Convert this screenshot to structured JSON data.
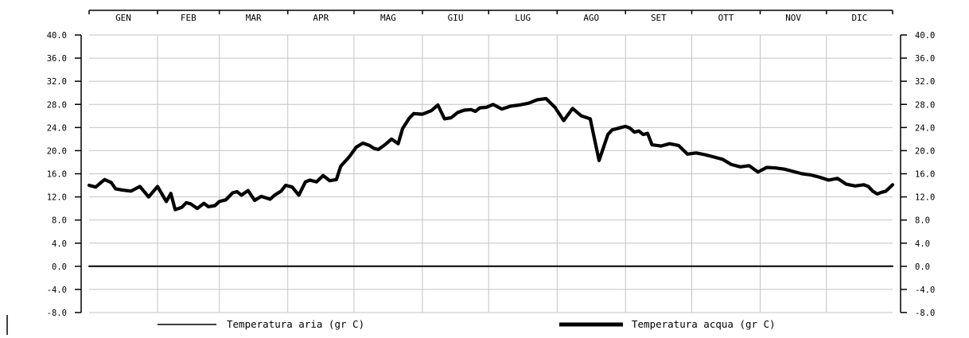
{
  "chart_data": {
    "type": "line",
    "title": "",
    "xlabel": "",
    "ylabel": "",
    "months": [
      "GEN",
      "FEB",
      "MAR",
      "APR",
      "MAG",
      "GIU",
      "LUG",
      "AGO",
      "SET",
      "OTT",
      "NOV",
      "DIC"
    ],
    "ylim": [
      -8,
      40
    ],
    "yticks": [
      40,
      36,
      32,
      28,
      24,
      20,
      16,
      12,
      8,
      4,
      0,
      -4,
      -8
    ],
    "ytick_labels": [
      "40.0",
      "36.0",
      "32.0",
      "28.0",
      "24.0",
      "20.0",
      "16.0",
      "12.0",
      "8.0",
      "4.0",
      "0.0",
      "-4.0",
      "-8.0"
    ],
    "x_unit": "day of year",
    "xlim": [
      1,
      365
    ],
    "grid": true,
    "legend_position": "bottom",
    "series": [
      {
        "name": "Temperatura aria (gr C)",
        "style": "thin",
        "color": "#000000",
        "x": [
          1,
          365
        ],
        "values": [
          0.0,
          0.0
        ]
      },
      {
        "name": "Temperatura acqua (gr C)",
        "style": "thick",
        "color": "#000000",
        "x": [
          1,
          4,
          8,
          11,
          13,
          16,
          20,
          24,
          28,
          32,
          36,
          38,
          40,
          43,
          45,
          47,
          50,
          53,
          55,
          58,
          60,
          63,
          66,
          68,
          70,
          73,
          76,
          79,
          83,
          85,
          88,
          90,
          93,
          96,
          99,
          101,
          104,
          107,
          110,
          113,
          115,
          119,
          122,
          125,
          128,
          130,
          132,
          135,
          138,
          141,
          143,
          146,
          148,
          152,
          156,
          159,
          162,
          165,
          168,
          171,
          174,
          176,
          178,
          181,
          184,
          188,
          192,
          196,
          200,
          204,
          208,
          212,
          216,
          220,
          224,
          228,
          232,
          236,
          238,
          240,
          242,
          244,
          246,
          248,
          250,
          252,
          254,
          256,
          260,
          264,
          268,
          272,
          276,
          280,
          284,
          288,
          292,
          296,
          300,
          304,
          308,
          312,
          316,
          320,
          324,
          328,
          332,
          336,
          340,
          344,
          348,
          352,
          354,
          356,
          358,
          360,
          362,
          365
        ],
        "values": [
          14.0,
          13.7,
          15.0,
          14.5,
          13.4,
          13.2,
          13.0,
          13.8,
          12.0,
          13.8,
          11.2,
          12.6,
          9.8,
          10.2,
          11.0,
          10.8,
          10.0,
          10.9,
          10.3,
          10.5,
          11.2,
          11.5,
          12.7,
          12.9,
          12.3,
          13.1,
          11.4,
          12.1,
          11.6,
          12.3,
          13.0,
          14.0,
          13.7,
          12.3,
          14.6,
          14.9,
          14.6,
          15.7,
          14.8,
          15.0,
          17.3,
          19.0,
          20.6,
          21.3,
          20.9,
          20.4,
          20.2,
          21.0,
          22.0,
          21.2,
          23.8,
          25.6,
          26.4,
          26.3,
          26.9,
          27.9,
          25.5,
          25.7,
          26.6,
          27.0,
          27.1,
          26.8,
          27.4,
          27.5,
          28.0,
          27.2,
          27.7,
          27.9,
          28.2,
          28.8,
          29.0,
          27.5,
          25.2,
          27.3,
          26.0,
          25.5,
          18.3,
          22.8,
          23.6,
          23.8,
          24.0,
          24.2,
          23.9,
          23.2,
          23.4,
          22.8,
          23.0,
          21.0,
          20.8,
          21.2,
          20.9,
          19.4,
          19.6,
          19.3,
          18.9,
          18.5,
          17.6,
          17.2,
          17.4,
          16.3,
          17.1,
          17.0,
          16.8,
          16.4,
          16.0,
          15.8,
          15.4,
          14.9,
          15.2,
          14.2,
          13.9,
          14.1,
          13.8,
          13.0,
          12.5,
          12.8,
          13.0,
          14.1
        ]
      }
    ]
  }
}
